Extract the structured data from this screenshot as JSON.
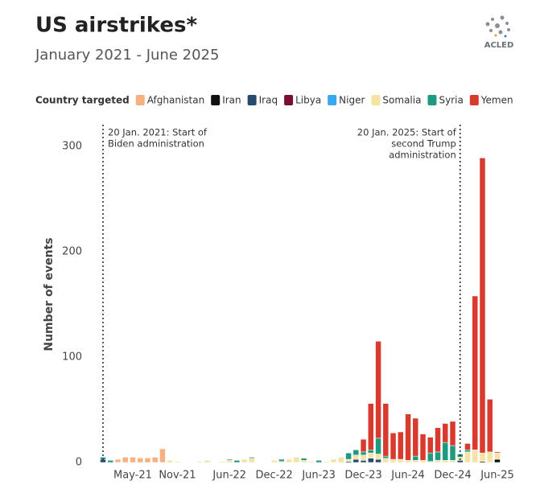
{
  "chart_data": {
    "type": "bar",
    "stacked": true,
    "title": "US airstrikes*",
    "subtitle": "January 2021 - June 2025",
    "logo_text": "ACLED",
    "legend_title": "Country targeted",
    "y_label": "Number of events",
    "ylim": [
      0,
      300
    ],
    "yticks": [
      0,
      100,
      200,
      300
    ],
    "grid": false,
    "categories": [
      null,
      null,
      null,
      null,
      "May-21",
      null,
      null,
      null,
      null,
      null,
      "Nov-21",
      null,
      null,
      null,
      null,
      null,
      null,
      "Jun-22",
      null,
      null,
      null,
      null,
      null,
      "Dec-22",
      null,
      null,
      null,
      null,
      null,
      "Jun-23",
      null,
      null,
      null,
      null,
      null,
      "Dec-23",
      null,
      null,
      null,
      null,
      null,
      "Jun-24",
      null,
      null,
      null,
      null,
      null,
      "Dec-24",
      null,
      null,
      null,
      null,
      null,
      "Jun-25"
    ],
    "annotations": [
      {
        "at": 0,
        "lines": [
          "20 Jan. 2021: Start of",
          "Biden administration"
        ]
      },
      {
        "at": 48,
        "lines": [
          "20 Jan. 2025: Start of",
          "second Trump",
          "administration"
        ]
      }
    ],
    "series": [
      {
        "name": "Afghanistan",
        "color": "#f6b183",
        "values": [
          0,
          0,
          3,
          5,
          5,
          4,
          4,
          5,
          13,
          0,
          0,
          0,
          0,
          0,
          0,
          0,
          0,
          0,
          0,
          0,
          0,
          0,
          0,
          0,
          0,
          0,
          0,
          0,
          0,
          0,
          0,
          0,
          0,
          0,
          0,
          0,
          0,
          0,
          0,
          0,
          0,
          0,
          0,
          0,
          0,
          0,
          0,
          0,
          0,
          0,
          0,
          0,
          0,
          0
        ]
      },
      {
        "name": "Iran",
        "color": "#111111",
        "values": [
          0,
          0,
          0,
          0,
          0,
          0,
          0,
          0,
          0,
          0,
          0,
          0,
          0,
          0,
          0,
          0,
          0,
          0,
          0,
          0,
          0,
          0,
          0,
          0,
          0,
          0,
          0,
          0,
          0,
          0,
          0,
          0,
          0,
          0,
          0,
          0,
          0,
          0,
          0,
          0,
          0,
          0,
          0,
          0,
          0,
          0,
          0,
          0,
          0,
          0,
          0,
          1,
          0,
          3
        ]
      },
      {
        "name": "Iraq",
        "color": "#274a6d",
        "values": [
          3,
          0,
          0,
          0,
          0,
          0,
          0,
          0,
          0,
          0,
          0,
          0,
          0,
          0,
          0,
          0,
          0,
          0,
          0,
          0,
          0,
          0,
          0,
          0,
          0,
          0,
          0,
          0,
          0,
          0,
          0,
          0,
          0,
          1,
          3,
          2,
          4,
          3,
          0,
          0,
          0,
          0,
          0,
          0,
          0,
          0,
          0,
          0,
          2,
          0,
          0,
          0,
          0,
          0
        ]
      },
      {
        "name": "Libya",
        "color": "#7b0d2e",
        "values": [
          0,
          0,
          0,
          0,
          0,
          0,
          0,
          0,
          0,
          0,
          0,
          0,
          0,
          0,
          0,
          0,
          0,
          0,
          0,
          0,
          0,
          0,
          0,
          0,
          0,
          0,
          0,
          0,
          0,
          0,
          0,
          0,
          0,
          0,
          0,
          0,
          0,
          0,
          0,
          0,
          0,
          0,
          0,
          0,
          0,
          0,
          0,
          0,
          0,
          0,
          0,
          0,
          0,
          0
        ]
      },
      {
        "name": "Niger",
        "color": "#3aa8ee",
        "values": [
          0,
          0,
          0,
          0,
          0,
          0,
          0,
          0,
          0,
          0,
          0,
          0,
          0,
          0,
          0,
          0,
          0,
          0,
          0,
          0,
          0,
          0,
          0,
          0,
          0,
          0,
          0,
          0,
          0,
          0,
          0,
          0,
          0,
          0,
          0,
          0,
          0,
          0,
          0,
          0,
          0,
          0,
          0,
          0,
          0,
          0,
          0,
          0,
          0,
          0,
          0,
          0,
          0,
          0
        ]
      },
      {
        "name": "Somalia",
        "color": "#f5e3a4",
        "values": [
          0,
          0,
          0,
          0,
          0,
          1,
          1,
          0,
          0,
          2,
          1,
          0,
          0,
          1,
          2,
          0,
          1,
          2,
          0,
          3,
          4,
          0,
          0,
          2,
          1,
          3,
          5,
          2,
          1,
          0,
          1,
          3,
          5,
          2,
          4,
          5,
          5,
          5,
          4,
          3,
          3,
          2,
          2,
          2,
          1,
          2,
          2,
          2,
          3,
          10,
          12,
          8,
          10,
          6
        ]
      },
      {
        "name": "Syria",
        "color": "#1d9a80",
        "values": [
          2,
          2,
          0,
          0,
          0,
          0,
          0,
          0,
          0,
          0,
          0,
          0,
          0,
          0,
          0,
          0,
          0,
          1,
          2,
          0,
          1,
          0,
          0,
          0,
          2,
          0,
          0,
          2,
          0,
          2,
          0,
          0,
          0,
          6,
          5,
          3,
          3,
          15,
          2,
          0,
          0,
          0,
          4,
          0,
          8,
          8,
          17,
          14,
          3,
          2,
          0,
          0,
          0,
          0
        ]
      },
      {
        "name": "Yemen",
        "color": "#d93a2e",
        "values": [
          0,
          0,
          0,
          0,
          0,
          0,
          0,
          0,
          0,
          0,
          0,
          0,
          0,
          0,
          0,
          0,
          0,
          0,
          0,
          0,
          0,
          0,
          0,
          0,
          0,
          0,
          0,
          0,
          0,
          0,
          0,
          0,
          0,
          0,
          0,
          12,
          44,
          92,
          50,
          25,
          26,
          44,
          36,
          25,
          15,
          23,
          18,
          23,
          0,
          6,
          146,
          280,
          50,
          1
        ]
      }
    ]
  }
}
